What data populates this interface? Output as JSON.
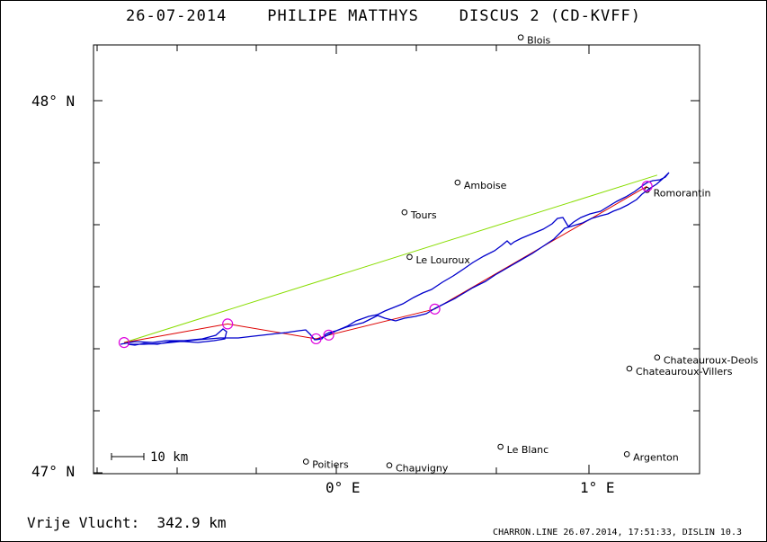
{
  "header": {
    "title": "26-07-2014    PHILIPE MATTHYS    DISCUS 2 (CD-KVFF)"
  },
  "axes": {
    "lat_labels": [
      "48° N",
      "47° N"
    ],
    "lon_labels": [
      "0° E",
      "1° E"
    ]
  },
  "cities": [
    {
      "name": "Blois",
      "lon": 0.73,
      "lat": 48.17
    },
    {
      "name": "Amboise",
      "lon": 0.48,
      "lat": 47.78
    },
    {
      "name": "Tours",
      "lon": 0.27,
      "lat": 47.7
    },
    {
      "name": "Le Louroux",
      "lon": 0.29,
      "lat": 47.58
    },
    {
      "name": "Romorantin",
      "lon": 1.23,
      "lat": 47.76
    },
    {
      "name": "Chateauroux-Deols",
      "lon": 1.27,
      "lat": 47.31
    },
    {
      "name": "Chateauroux-Villers",
      "lon": 1.16,
      "lat": 47.28
    },
    {
      "name": "Poitiers",
      "lon": -0.12,
      "lat": 47.03
    },
    {
      "name": "Chauvigny",
      "lon": 0.21,
      "lat": 47.02
    },
    {
      "name": "Le Blanc",
      "lon": 0.65,
      "lat": 47.07
    },
    {
      "name": "Argenton",
      "lon": 1.15,
      "lat": 47.05
    }
  ],
  "scale_bar": {
    "label": "10 km"
  },
  "flight": {
    "colors": {
      "track": "#0000cc",
      "task": "#dd0000",
      "straight": "#88dd00",
      "turnpoint": "#dd00dd"
    },
    "turnpoints": [
      {
        "lon": -0.84,
        "lat": 47.35
      },
      {
        "lon": -0.43,
        "lat": 47.4
      },
      {
        "lon": -0.08,
        "lat": 47.36
      },
      {
        "lon": -0.03,
        "lat": 47.37
      },
      {
        "lon": 0.39,
        "lat": 47.44
      },
      {
        "lon": 1.23,
        "lat": 47.77
      }
    ],
    "straight_line": [
      {
        "lon": -0.84,
        "lat": 47.35
      },
      {
        "lon": 1.27,
        "lat": 47.8
      }
    ]
  },
  "footer": {
    "distance_label": "Vrije Vlucht:  342.9 km",
    "credit": "CHARRON.LINE 26.07.2014, 17:51:33, DISLIN 10.3"
  }
}
